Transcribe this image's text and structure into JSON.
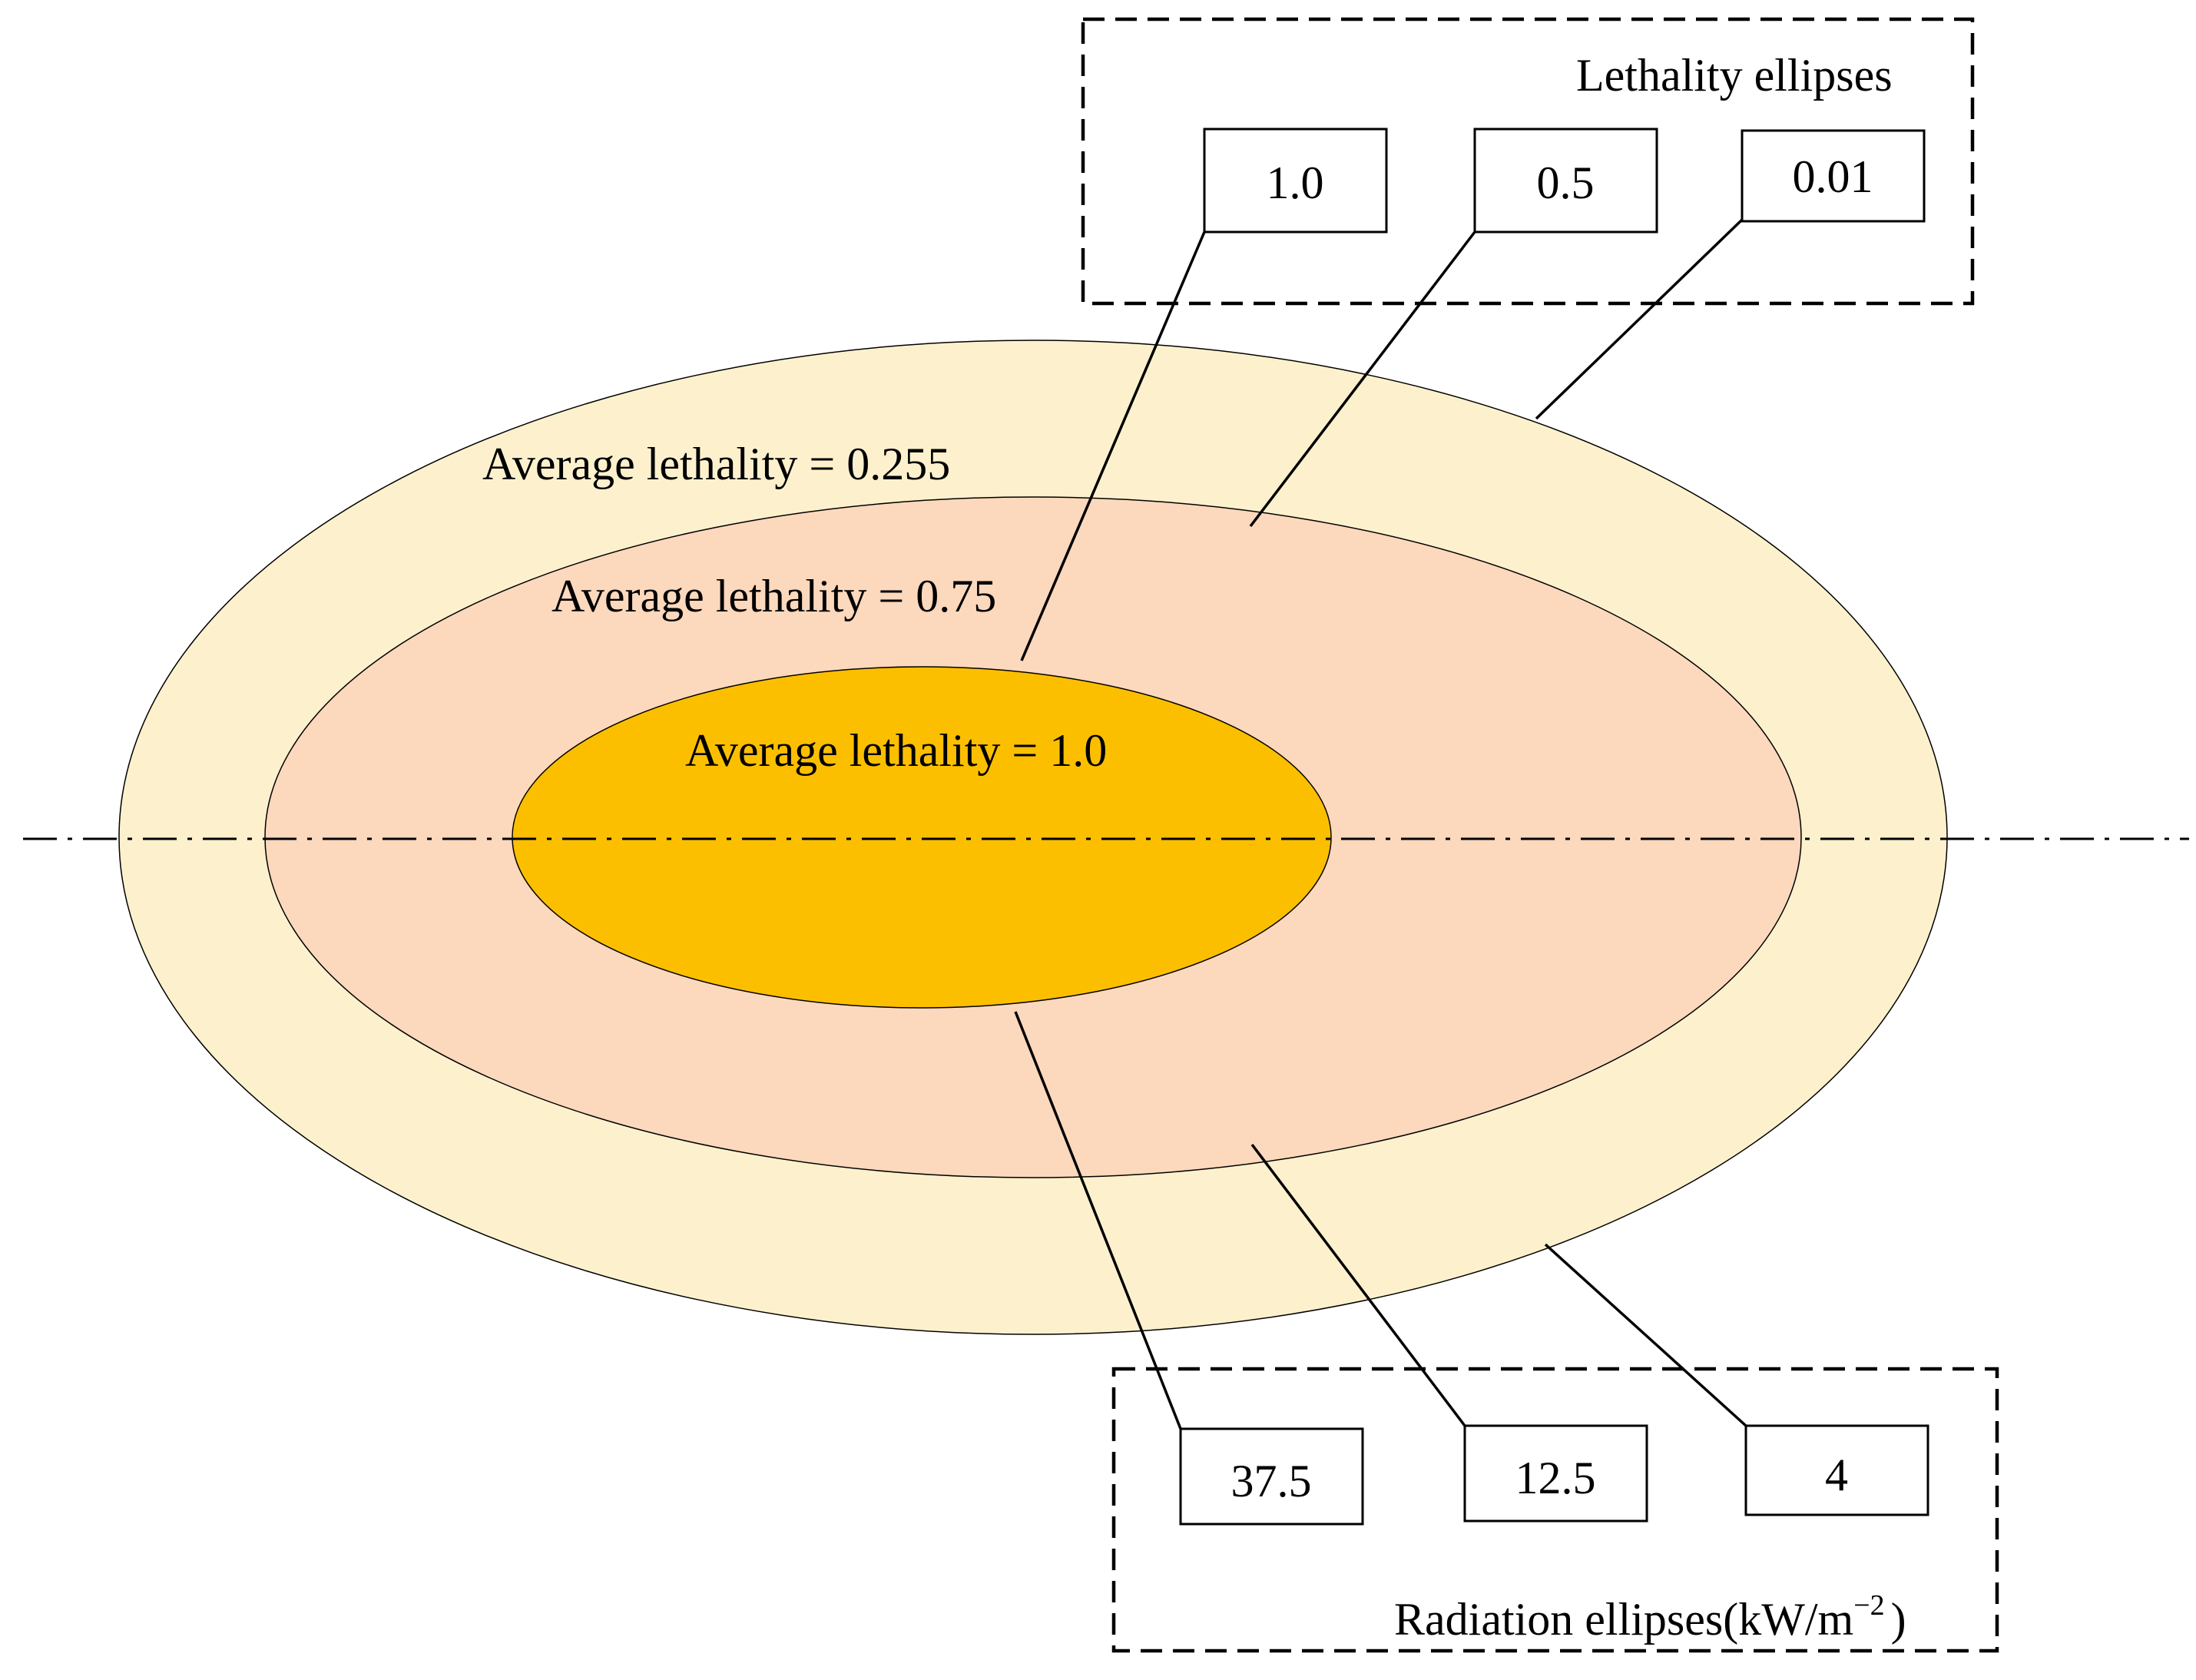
{
  "colors": {
    "outer_zone": "#FDF1CD",
    "middle_zone": "#FCD8BD",
    "inner_zone": "#FCBF00",
    "stroke": "#000000",
    "background": "#FFFFFF"
  },
  "zones": {
    "outer": {
      "label": "Average lethality = 0.255"
    },
    "middle": {
      "label": "Average lethality = 0.75"
    },
    "inner": {
      "label": "Average lethality = 1.0"
    }
  },
  "lethality_group": {
    "title": "Lethality ellipses",
    "boxes": [
      {
        "label": "1.0"
      },
      {
        "label": "0.5"
      },
      {
        "label": "0.01"
      }
    ]
  },
  "radiation_group": {
    "title_main": "Radiation ellipses(kW/m",
    "title_sup": "−2",
    "title_end": ")",
    "boxes": [
      {
        "label": "37.5"
      },
      {
        "label": "12.5"
      },
      {
        "label": "4"
      }
    ]
  }
}
